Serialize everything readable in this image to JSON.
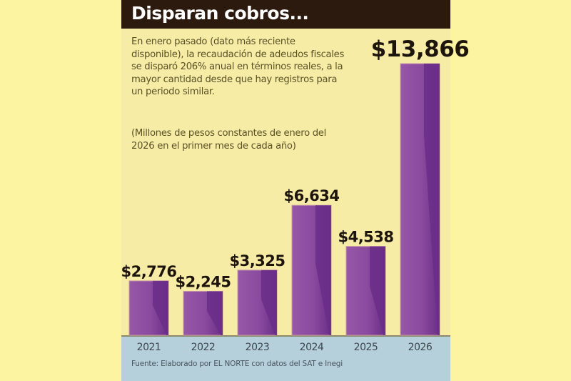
{
  "header": {
    "title": "Disparan cobros..."
  },
  "description": "En enero pasado (dato más reciente disponible), la recaudación de adeudos fiscales se disparó 206% anual en términos reales, a la mayor cantidad desde que hay registros para un periodo similar.",
  "units_note": "(Millones de pesos constantes de enero del 2026 en el primer mes de cada año)",
  "source": "Fuente: Elaborado por EL NORTE con datos del SAT e Inegi",
  "colors": {
    "bar_light": "#9858a8",
    "bar_dark": "#6a2e88",
    "header": "#2b1a0d",
    "footer": "#b5d0da"
  },
  "chart_data": {
    "type": "bar",
    "title": "Disparan cobros...",
    "categories": [
      "2021",
      "2022",
      "2023",
      "2024",
      "2025",
      "2026"
    ],
    "values": [
      2776,
      2245,
      3325,
      6634,
      4538,
      13866
    ],
    "data_labels": [
      "$2,776",
      "$2,245",
      "$3,325",
      "$6,634",
      "$4,538",
      "$13,866"
    ],
    "xlabel": "",
    "ylabel": "",
    "grid": false
  }
}
